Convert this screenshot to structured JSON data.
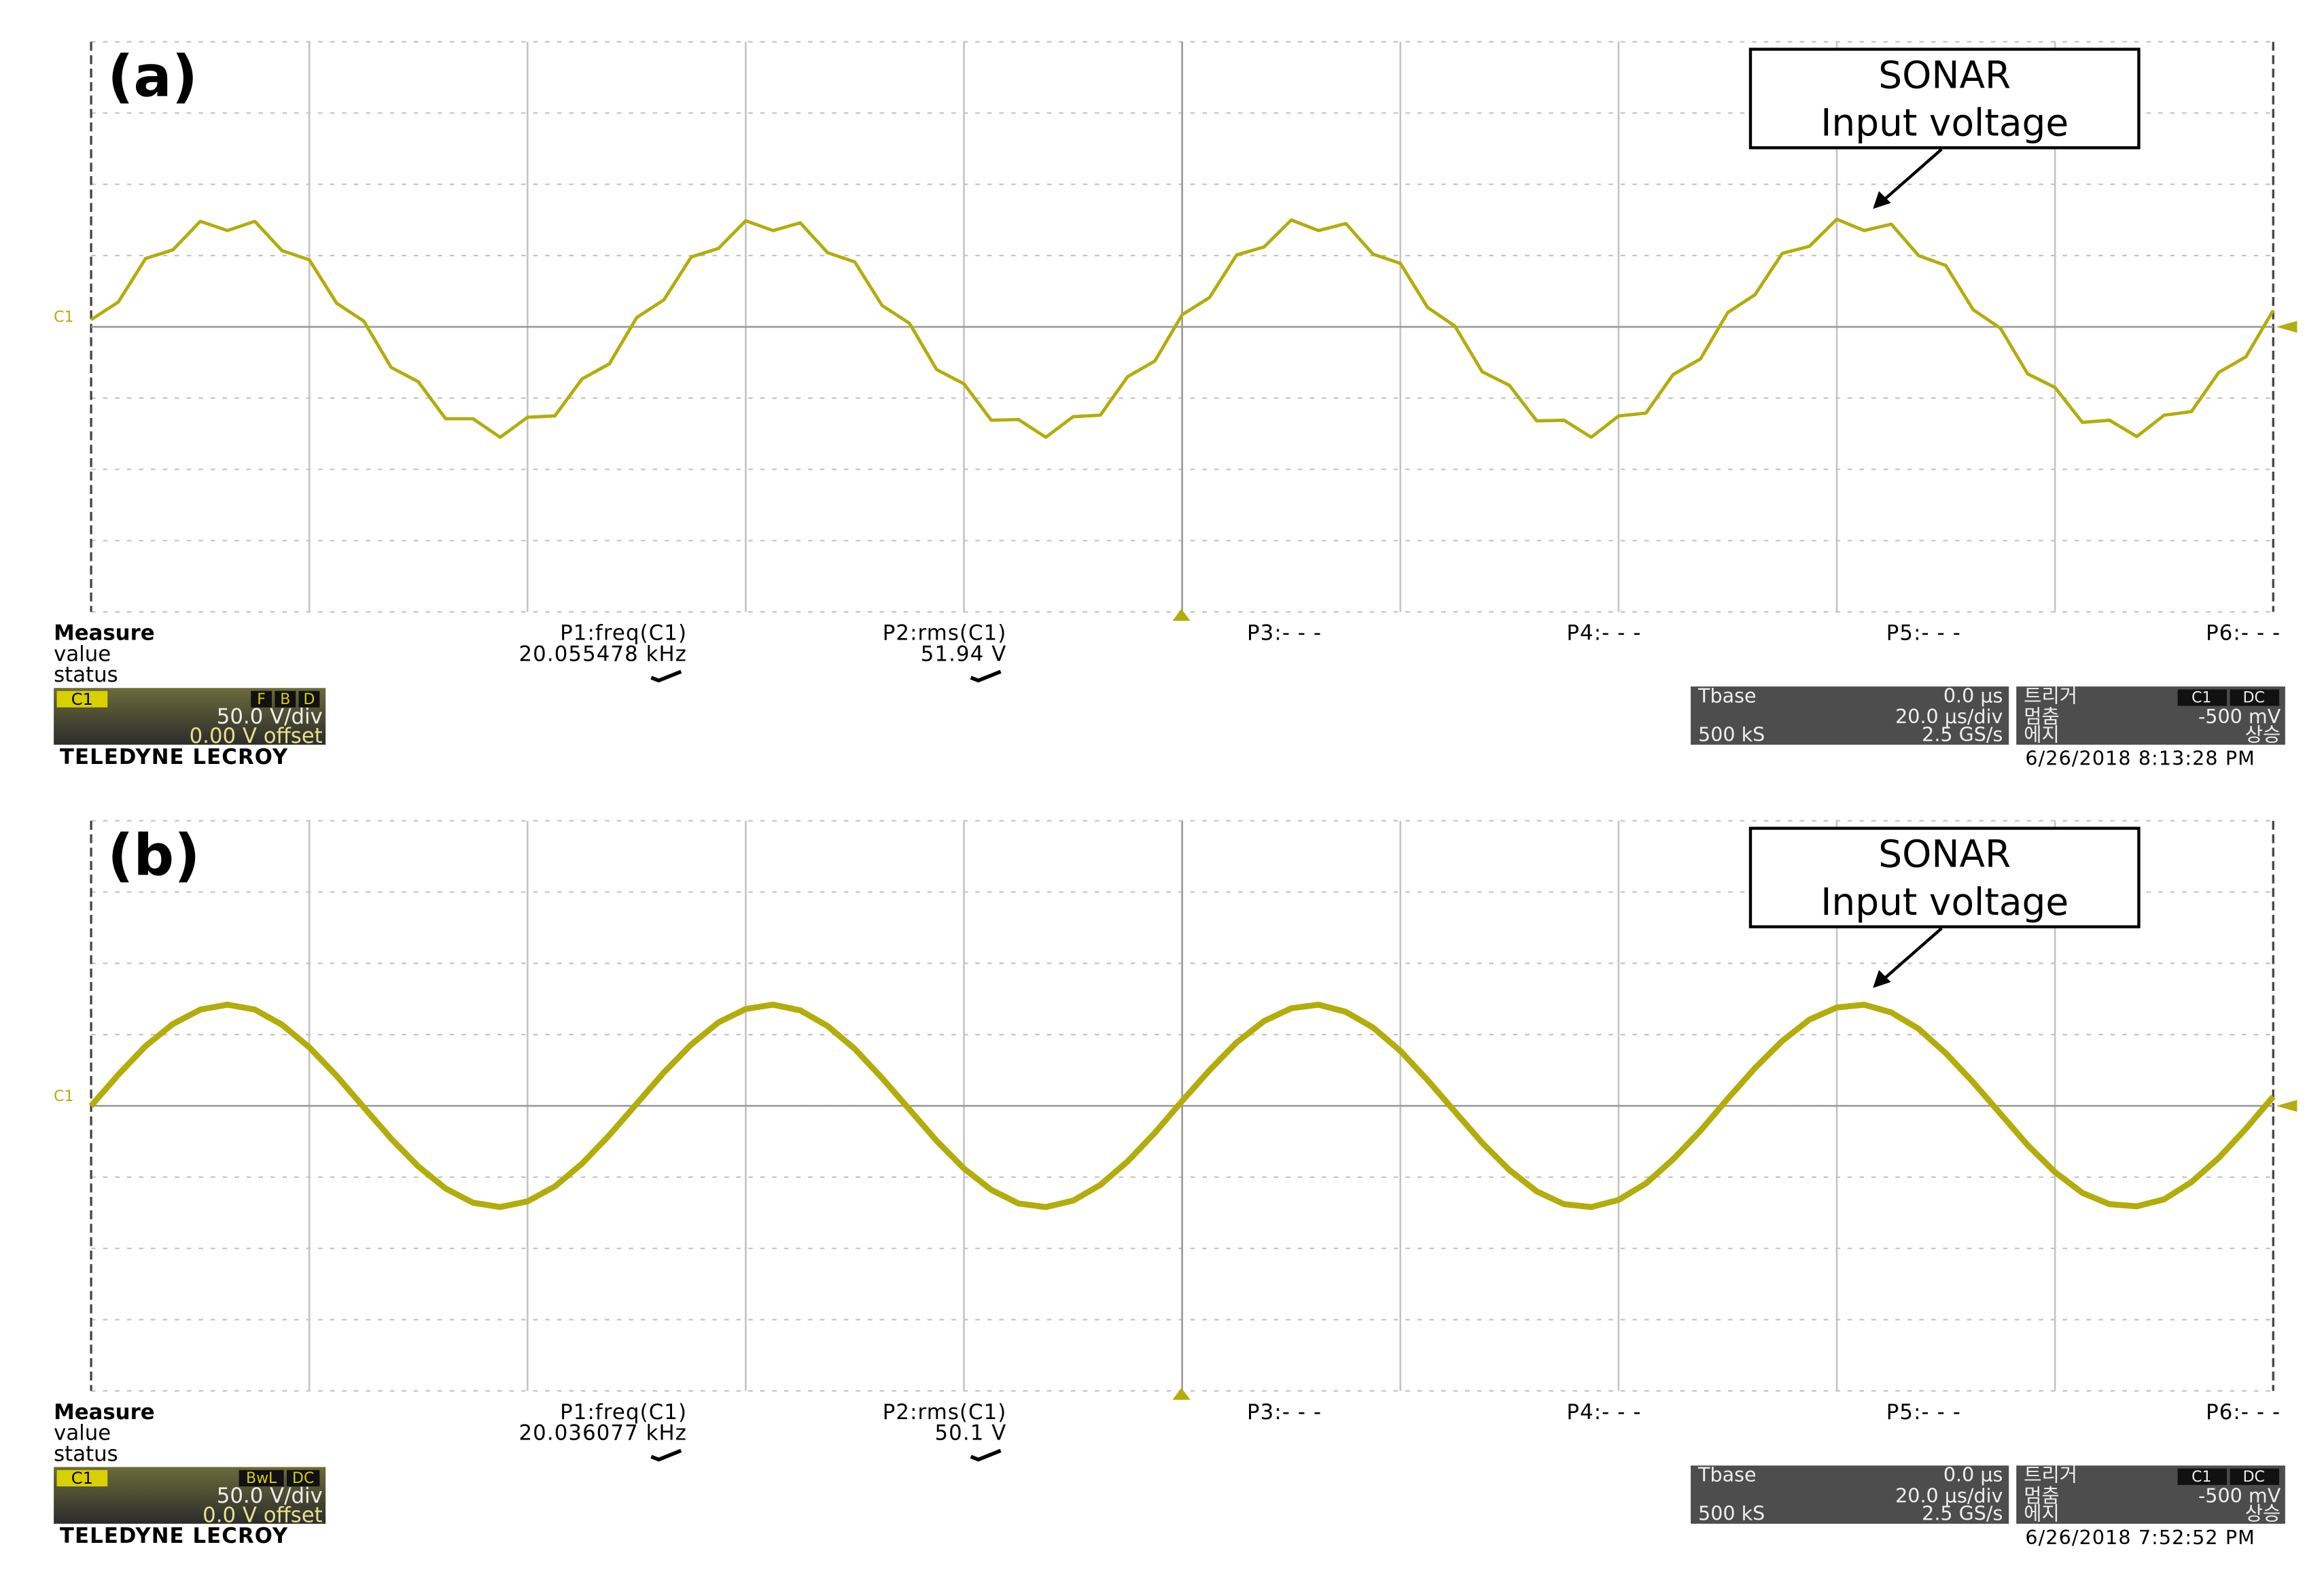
{
  "chart_data": [
    {
      "type": "line",
      "label": "(a)",
      "annotation": [
        "SONAR",
        "Input voltage"
      ],
      "trace_label": "C1",
      "color": "#b3ad0c",
      "x": [
        0,
        0.125,
        0.25,
        0.375,
        0.5,
        0.625,
        0.75,
        0.875,
        1,
        1.125,
        1.25,
        1.375,
        1.5,
        1.625,
        1.75,
        1.875,
        2,
        2.125,
        2.25,
        2.375,
        2.5,
        2.625,
        2.75,
        2.875,
        3,
        3.125,
        3.25,
        3.375,
        3.5,
        3.625,
        3.75,
        3.875,
        4,
        4.125,
        4.25,
        4.375,
        4.5,
        4.625,
        4.75,
        4.875,
        5,
        5.125,
        5.25,
        5.375,
        5.5,
        5.625,
        5.75,
        5.875,
        6,
        6.125,
        6.25,
        6.375,
        6.5,
        6.625,
        6.75,
        6.875,
        7,
        7.125,
        7.25,
        7.375,
        7.5,
        7.625,
        7.75,
        7.875,
        8,
        8.125,
        8.25,
        8.375,
        8.5,
        8.625,
        8.75,
        8.875,
        9,
        9.125,
        9.25,
        9.375,
        9.5,
        9.625,
        9.75,
        9.875,
        10
      ],
      "values": [
        0.1,
        0.35,
        0.96,
        1.08,
        1.48,
        1.35,
        1.48,
        1.07,
        0.94,
        0.33,
        0.08,
        -0.57,
        -0.77,
        -1.29,
        -1.29,
        -1.55,
        -1.27,
        -1.25,
        -0.73,
        -0.52,
        0.13,
        0.38,
        0.98,
        1.1,
        1.49,
        1.35,
        1.46,
        1.04,
        0.91,
        0.3,
        0.05,
        -0.6,
        -0.8,
        -1.31,
        -1.3,
        -1.55,
        -1.26,
        -1.24,
        -0.7,
        -0.48,
        0.17,
        0.41,
        1.01,
        1.12,
        1.5,
        1.35,
        1.45,
        1.02,
        0.89,
        0.27,
        0.01,
        -0.63,
        -0.82,
        -1.32,
        -1.31,
        -1.55,
        -1.25,
        -1.21,
        -0.67,
        -0.45,
        0.2,
        0.45,
        1.03,
        1.13,
        1.51,
        1.35,
        1.44,
        1.0,
        0.86,
        0.24,
        -0.02,
        -0.66,
        -0.85,
        -1.34,
        -1.31,
        -1.54,
        -1.24,
        -1.19,
        -0.64,
        -0.42,
        0.23
      ],
      "xlim": [
        0,
        10
      ],
      "ylim": [
        -4,
        4
      ],
      "xticks": [
        0,
        1,
        2,
        3,
        4,
        5,
        6,
        7,
        8,
        9,
        10
      ],
      "yticks": [
        -4,
        -3,
        -2,
        -1,
        0,
        1,
        2,
        3,
        4
      ],
      "grid": true,
      "measure": {
        "title": "Measure",
        "rows": [
          "value",
          "status"
        ],
        "params": [
          {
            "name": "P1:freq(C1)",
            "value": "20.055478 kHz"
          },
          {
            "name": "P2:rms(C1)",
            "value": "51.94 V"
          },
          {
            "name": "P3:- - -"
          },
          {
            "name": "P4:- - -"
          },
          {
            "name": "P5:- - -"
          },
          {
            "name": "P6:- - -"
          }
        ]
      },
      "channel": {
        "name": "C1",
        "flags": [
          "F",
          "B",
          "D"
        ],
        "scale": "50.0 V/div",
        "offset": "0.00 V offset"
      },
      "timebase": {
        "title": "Tbase",
        "delay": "0.0 µs",
        "scale": "20.0 µs/div",
        "samples": "500 kS",
        "rate": "2.5 GS/s"
      },
      "trigger": {
        "title": "트리거",
        "source": [
          "C1",
          "DC"
        ],
        "mode": "멈춤",
        "level": "-500 mV",
        "type": "에지",
        "slope": "상승"
      },
      "brand": "TELEDYNE LECROY",
      "timestamp": "6/26/2018 8:13:28 PM"
    },
    {
      "type": "line",
      "label": "(b)",
      "annotation": [
        "SONAR",
        "Input voltage"
      ],
      "trace_label": "C1",
      "color": "#b3ad0c",
      "x": [
        0,
        0.125,
        0.25,
        0.375,
        0.5,
        0.625,
        0.75,
        0.875,
        1,
        1.125,
        1.25,
        1.375,
        1.5,
        1.625,
        1.75,
        1.875,
        2,
        2.125,
        2.25,
        2.375,
        2.5,
        2.625,
        2.75,
        2.875,
        3,
        3.125,
        3.25,
        3.375,
        3.5,
        3.625,
        3.75,
        3.875,
        4,
        4.125,
        4.25,
        4.375,
        4.5,
        4.625,
        4.75,
        4.875,
        5,
        5.125,
        5.25,
        5.375,
        5.5,
        5.625,
        5.75,
        5.875,
        6,
        6.125,
        6.25,
        6.375,
        6.5,
        6.625,
        6.75,
        6.875,
        7,
        7.125,
        7.25,
        7.375,
        7.5,
        7.625,
        7.75,
        7.875,
        8,
        8.125,
        8.25,
        8.375,
        8.5,
        8.625,
        8.75,
        8.875,
        9,
        9.125,
        9.25,
        9.375,
        9.5,
        9.625,
        9.75,
        9.875,
        10
      ],
      "values": [
        0,
        0.44,
        0.84,
        1.15,
        1.35,
        1.42,
        1.35,
        1.14,
        0.82,
        0.42,
        -0.02,
        -0.46,
        -0.85,
        -1.16,
        -1.36,
        -1.42,
        -1.34,
        -1.13,
        -0.81,
        -0.41,
        0.03,
        0.47,
        0.86,
        1.17,
        1.36,
        1.42,
        1.34,
        1.12,
        0.8,
        0.39,
        -0.05,
        -0.49,
        -0.88,
        -1.18,
        -1.37,
        -1.42,
        -1.33,
        -1.11,
        -0.78,
        -0.38,
        0.07,
        0.5,
        0.89,
        1.19,
        1.37,
        1.42,
        1.32,
        1.1,
        0.77,
        0.36,
        -0.08,
        -0.52,
        -0.9,
        -1.2,
        -1.38,
        -1.42,
        -1.32,
        -1.09,
        -0.75,
        -0.35,
        0.1,
        0.53,
        0.91,
        1.21,
        1.38,
        1.42,
        1.31,
        1.08,
        0.74,
        0.33,
        -0.11,
        -0.55,
        -0.93,
        -1.22,
        -1.38,
        -1.41,
        -1.31,
        -1.07,
        -0.73,
        -0.32,
        0.13
      ],
      "xlim": [
        0,
        10
      ],
      "ylim": [
        -4,
        4
      ],
      "xticks": [
        0,
        1,
        2,
        3,
        4,
        5,
        6,
        7,
        8,
        9,
        10
      ],
      "yticks": [
        -4,
        -3,
        -2,
        -1,
        0,
        1,
        2,
        3,
        4
      ],
      "grid": true,
      "measure": {
        "title": "Measure",
        "rows": [
          "value",
          "status"
        ],
        "params": [
          {
            "name": "P1:freq(C1)",
            "value": "20.036077 kHz"
          },
          {
            "name": "P2:rms(C1)",
            "value": "50.1 V"
          },
          {
            "name": "P3:- - -"
          },
          {
            "name": "P4:- - -"
          },
          {
            "name": "P5:- - -"
          },
          {
            "name": "P6:- - -"
          }
        ]
      },
      "channel": {
        "name": "C1",
        "flags": [
          "BwL",
          "DC"
        ],
        "scale": "50.0 V/div",
        "offset": "0.0 V offset"
      },
      "timebase": {
        "title": "Tbase",
        "delay": "0.0 µs",
        "scale": "20.0 µs/div",
        "samples": "500 kS",
        "rate": "2.5 GS/s"
      },
      "trigger": {
        "title": "트리거",
        "source": [
          "C1",
          "DC"
        ],
        "mode": "멈춤",
        "level": "-500 mV",
        "type": "에지",
        "slope": "상승"
      },
      "brand": "TELEDYNE LECROY",
      "timestamp": "6/26/2018 7:52:52 PM"
    }
  ]
}
